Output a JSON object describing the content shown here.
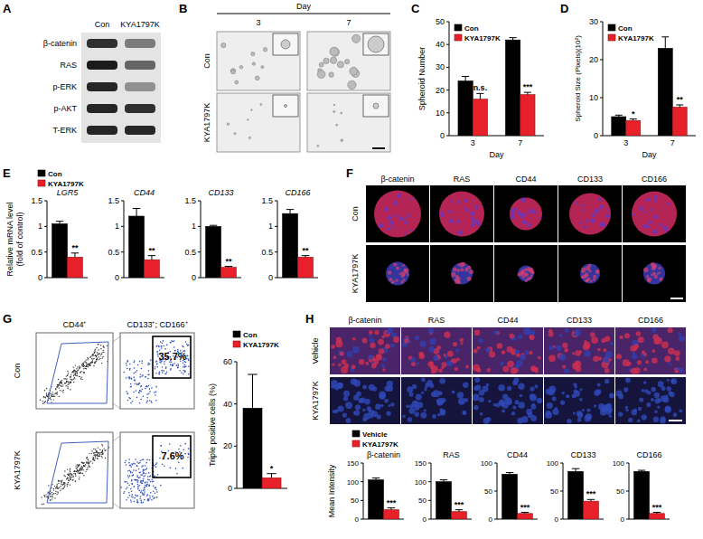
{
  "panel_labels": [
    "A",
    "B",
    "C",
    "D",
    "E",
    "F",
    "G",
    "H"
  ],
  "blot": {
    "lanes": [
      "Con",
      "KYA1797K"
    ],
    "rows": [
      "β-catenin",
      "RAS",
      "p-ERK",
      "p-AKT",
      "T-ERK"
    ]
  },
  "spheroids": {
    "header": "Day",
    "days": [
      "3",
      "7"
    ],
    "rows": [
      "Con",
      "KYA1797K"
    ]
  },
  "immunofluorescence": {
    "columns": [
      "β-catenin",
      "RAS",
      "CD44",
      "CD133",
      "CD166"
    ],
    "rows": [
      "Con",
      "KYA1797K"
    ]
  },
  "flow": {
    "gates": [
      "CD44⁺",
      "CD133⁺; CD166⁺"
    ],
    "rows": [
      "Con",
      "KYA1797K"
    ],
    "percentages": [
      "35.7%",
      "7.6%"
    ]
  },
  "tissue": {
    "columns": [
      "β-catenin",
      "RAS",
      "CD44",
      "CD133",
      "CD166"
    ],
    "rows": [
      "Vehicle",
      "KYA1797K"
    ]
  },
  "chart_data": [
    {
      "type": "bar",
      "ylabel": "Spheroid Number",
      "xlabel": "Day",
      "categories": [
        "3",
        "7"
      ],
      "series": [
        {
          "name": "Con",
          "color": "#000000",
          "values": [
            24,
            42
          ],
          "errors": [
            2,
            1
          ]
        },
        {
          "name": "KYA1797K",
          "color": "#e8202a",
          "values": [
            16,
            18
          ],
          "errors": [
            2.5,
            1
          ]
        }
      ],
      "significance": [
        "n.s.",
        "***"
      ],
      "ylim": [
        0,
        50
      ],
      "yticks": [
        0,
        10,
        20,
        30,
        40,
        50
      ],
      "legend": "upper left"
    },
    {
      "type": "bar",
      "ylabel": "Spheroid Size (Pixels)(10²)",
      "xlabel": "Day",
      "categories": [
        "3",
        "7"
      ],
      "series": [
        {
          "name": "Con",
          "color": "#000000",
          "values": [
            5,
            23
          ],
          "errors": [
            0.4,
            3
          ]
        },
        {
          "name": "KYA1797K",
          "color": "#e8202a",
          "values": [
            4,
            7.5
          ],
          "errors": [
            0.4,
            0.6
          ]
        }
      ],
      "significance": [
        "*",
        "**"
      ],
      "ylim": [
        0,
        30
      ],
      "yticks": [
        0,
        10,
        20,
        30
      ],
      "legend": "upper left"
    },
    {
      "type": "bar",
      "title": "LGR5",
      "ylabel": "Relative mRNA level\n(fold of control)",
      "categories": [
        null
      ],
      "series": [
        {
          "name": "Con",
          "color": "#000000",
          "values": [
            1.05
          ],
          "errors": [
            0.05
          ]
        },
        {
          "name": "KYA1797K",
          "color": "#e8202a",
          "values": [
            0.4
          ],
          "errors": [
            0.08
          ]
        }
      ],
      "significance": [
        "**"
      ],
      "ylim": [
        0,
        1.5
      ],
      "yticks": [
        0,
        0.5,
        1,
        1.5
      ],
      "legend": "top",
      "tick_labels": "y"
    },
    {
      "type": "bar",
      "title": "CD44",
      "categories": [
        null
      ],
      "series": [
        {
          "color": "#000000",
          "values": [
            1.2
          ],
          "errors": [
            0.15
          ]
        },
        {
          "color": "#e8202a",
          "values": [
            0.35
          ],
          "errors": [
            0.08
          ]
        }
      ],
      "significance": [
        "**"
      ],
      "ylim": [
        0,
        1.5
      ],
      "yticks": [
        0,
        0.5,
        1,
        1.5
      ],
      "tick_labels": "y"
    },
    {
      "type": "bar",
      "title": "CD133",
      "categories": [
        null
      ],
      "series": [
        {
          "color": "#000000",
          "values": [
            1.0
          ],
          "errors": [
            0.02
          ]
        },
        {
          "color": "#e8202a",
          "values": [
            0.2
          ],
          "errors": [
            0.02
          ]
        }
      ],
      "significance": [
        "**"
      ],
      "ylim": [
        0,
        1.5
      ],
      "yticks": [
        0,
        0.5,
        1,
        1.5
      ],
      "tick_labels": "y"
    },
    {
      "type": "bar",
      "title": "CD166",
      "categories": [
        null
      ],
      "series": [
        {
          "color": "#000000",
          "values": [
            1.25
          ],
          "errors": [
            0.08
          ]
        },
        {
          "color": "#e8202a",
          "values": [
            0.4
          ],
          "errors": [
            0.03
          ]
        }
      ],
      "significance": [
        "**"
      ],
      "ylim": [
        0,
        1.5
      ],
      "yticks": [
        0,
        0.5,
        1,
        1.5
      ],
      "tick_labels": "y"
    },
    {
      "type": "bar",
      "ylabel": "Triple positive cells (%)",
      "categories": [
        null
      ],
      "series": [
        {
          "name": "Con",
          "color": "#000000",
          "values": [
            38
          ],
          "errors": [
            16
          ]
        },
        {
          "name": "KYA1797K",
          "color": "#e8202a",
          "values": [
            5
          ],
          "errors": [
            2
          ]
        }
      ],
      "significance": [
        "*"
      ],
      "ylim": [
        0,
        60
      ],
      "yticks": [
        0,
        20,
        40,
        60
      ],
      "legend": "top",
      "tick_labels": "y"
    },
    {
      "type": "bar",
      "title": "β-catenin",
      "ylabel": "Mean Intensity",
      "categories": [
        null
      ],
      "series": [
        {
          "name": "Vehicle",
          "color": "#000000",
          "values": [
            105
          ],
          "errors": [
            5
          ]
        },
        {
          "name": "KYA1797K",
          "color": "#e8202a",
          "values": [
            25
          ],
          "errors": [
            5
          ]
        }
      ],
      "significance": [
        "***"
      ],
      "ylim": [
        0,
        150
      ],
      "yticks": [
        0,
        50,
        100,
        150
      ],
      "legend": "top",
      "tick_labels": "y"
    },
    {
      "type": "bar",
      "title": "RAS",
      "categories": [
        null
      ],
      "series": [
        {
          "color": "#000000",
          "values": [
            100
          ],
          "errors": [
            5
          ]
        },
        {
          "color": "#e8202a",
          "values": [
            20
          ],
          "errors": [
            5
          ]
        }
      ],
      "significance": [
        "***"
      ],
      "ylim": [
        0,
        150
      ],
      "yticks": [
        0,
        50,
        100,
        150
      ],
      "tick_labels": "y"
    },
    {
      "type": "bar",
      "title": "CD44",
      "categories": [
        null
      ],
      "series": [
        {
          "color": "#000000",
          "values": [
            80
          ],
          "errors": [
            3
          ]
        },
        {
          "color": "#e8202a",
          "values": [
            10
          ],
          "errors": [
            2
          ]
        }
      ],
      "significance": [
        "***"
      ],
      "ylim": [
        0,
        100
      ],
      "yticks": [
        0,
        50,
        100
      ],
      "tick_labels": "y"
    },
    {
      "type": "bar",
      "title": "CD133",
      "categories": [
        null
      ],
      "series": [
        {
          "color": "#000000",
          "values": [
            85
          ],
          "errors": [
            5
          ]
        },
        {
          "color": "#e8202a",
          "values": [
            32
          ],
          "errors": [
            3
          ]
        }
      ],
      "significance": [
        "***"
      ],
      "ylim": [
        0,
        100
      ],
      "yticks": [
        0,
        50,
        100
      ],
      "tick_labels": "y"
    },
    {
      "type": "bar",
      "title": "CD166",
      "categories": [
        null
      ],
      "series": [
        {
          "color": "#000000",
          "values": [
            85
          ],
          "errors": [
            2
          ]
        },
        {
          "color": "#e8202a",
          "values": [
            10
          ],
          "errors": [
            2
          ]
        }
      ],
      "significance": [
        "***"
      ],
      "ylim": [
        0,
        100
      ],
      "yticks": [
        0,
        50,
        100
      ],
      "tick_labels": "y"
    }
  ]
}
